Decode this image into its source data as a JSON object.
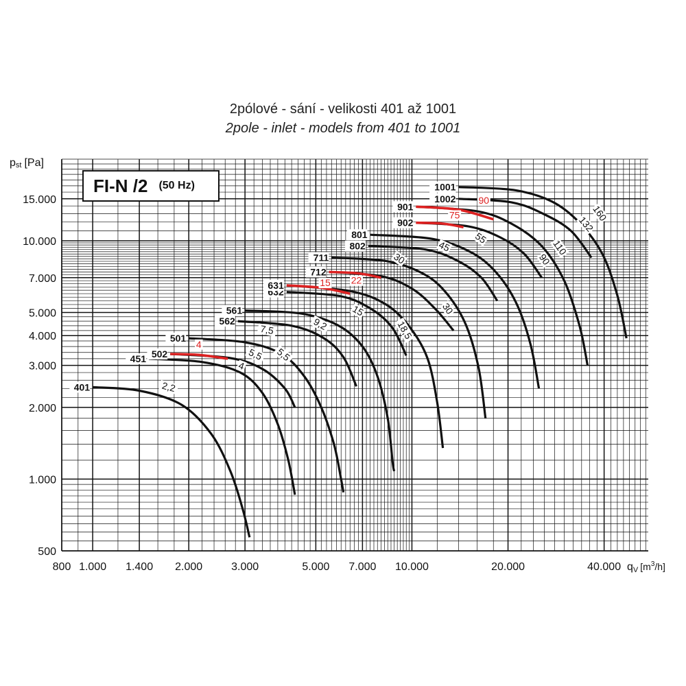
{
  "chart_title_cz": "2pólové - sání - velikosti 401 až 1001",
  "chart_title_en": "2pole - inlet - models from 401 to 1001",
  "badge": {
    "model": "FI-N /2",
    "freq": "(50 Hz)"
  },
  "chart_data": {
    "type": "line",
    "xscale": "log",
    "yscale": "log",
    "xlim": [
      800,
      55000
    ],
    "ylim": [
      500,
      22000
    ],
    "grid": true,
    "xlabel": {
      "main": "q",
      "sub": "V",
      "unit_pre": "[m",
      "unit_sup": "3",
      "unit_post": "/h]"
    },
    "ylabel": {
      "main": "p",
      "sub": "st",
      "unit": "[Pa]"
    },
    "xticks": [
      {
        "v": 800,
        "label": "800"
      },
      {
        "v": 1000,
        "label": "1.000"
      },
      {
        "v": 1400,
        "label": "1.400"
      },
      {
        "v": 2000,
        "label": "2.000"
      },
      {
        "v": 3000,
        "label": "3.000"
      },
      {
        "v": 5000,
        "label": "5.000"
      },
      {
        "v": 7000,
        "label": "7.000"
      },
      {
        "v": 10000,
        "label": "10.000"
      },
      {
        "v": 20000,
        "label": "20.000"
      },
      {
        "v": 40000,
        "label": "40.000"
      }
    ],
    "yticks": [
      {
        "v": 500,
        "label": "500"
      },
      {
        "v": 1000,
        "label": "1.000"
      },
      {
        "v": 2000,
        "label": "2.000"
      },
      {
        "v": 3000,
        "label": "3.000"
      },
      {
        "v": 4000,
        "label": "4.000"
      },
      {
        "v": 5000,
        "label": "5.000"
      },
      {
        "v": 7000,
        "label": "7.000"
      },
      {
        "v": 10000,
        "label": "10.000"
      },
      {
        "v": 15000,
        "label": "15.000"
      }
    ],
    "series": [
      {
        "name": "401",
        "color": "#111111",
        "points": [
          [
            1000,
            2430
          ],
          [
            1400,
            2350
          ],
          [
            1900,
            2050
          ],
          [
            2350,
            1550
          ],
          [
            2700,
            1080
          ],
          [
            2950,
            750
          ],
          [
            3100,
            570
          ]
        ]
      },
      {
        "name": "451",
        "color": "#111111",
        "points": [
          [
            1500,
            3200
          ],
          [
            2200,
            3100
          ],
          [
            2900,
            2800
          ],
          [
            3400,
            2300
          ],
          [
            3800,
            1700
          ],
          [
            4100,
            1200
          ],
          [
            4300,
            860
          ]
        ]
      },
      {
        "name": "502",
        "color": "#111111",
        "points": [
          [
            1750,
            3350
          ],
          [
            2700,
            3220
          ],
          [
            3400,
            2900
          ],
          [
            4000,
            2400
          ],
          [
            4300,
            2000
          ]
        ]
      },
      {
        "name": "501",
        "color": "#111111",
        "points": [
          [
            2000,
            3900
          ],
          [
            3000,
            3750
          ],
          [
            3900,
            3350
          ],
          [
            4600,
            2700
          ],
          [
            5200,
            2000
          ],
          [
            5700,
            1400
          ],
          [
            6000,
            1000
          ],
          [
            6100,
            880
          ]
        ]
      },
      {
        "name": "562",
        "color": "#111111",
        "points": [
          [
            2850,
            4600
          ],
          [
            4200,
            4400
          ],
          [
            5300,
            3900
          ],
          [
            6100,
            3250
          ],
          [
            6700,
            2450
          ]
        ]
      },
      {
        "name": "561",
        "color": "#111111",
        "points": [
          [
            3000,
            5100
          ],
          [
            4500,
            4950
          ],
          [
            5900,
            4400
          ],
          [
            7000,
            3600
          ],
          [
            7800,
            2700
          ],
          [
            8400,
            1800
          ],
          [
            8700,
            1180
          ],
          [
            8800,
            1080
          ]
        ]
      },
      {
        "name": "632",
        "color": "#111111",
        "points": [
          [
            4050,
            6100
          ],
          [
            6000,
            5850
          ],
          [
            7500,
            5150
          ],
          [
            8700,
            4300
          ],
          [
            9600,
            3300
          ]
        ]
      },
      {
        "name": "631",
        "color": "#111111",
        "points": [
          [
            4050,
            6500
          ],
          [
            6400,
            6150
          ],
          [
            8300,
            5400
          ],
          [
            9900,
            4300
          ],
          [
            11200,
            3200
          ],
          [
            12000,
            2100
          ],
          [
            12500,
            1350
          ]
        ]
      },
      {
        "name": "712",
        "color": "#111111",
        "points": [
          [
            5500,
            7400
          ],
          [
            8000,
            7100
          ],
          [
            10000,
            6300
          ],
          [
            11800,
            5200
          ],
          [
            13500,
            4200
          ]
        ]
      },
      {
        "name": "711",
        "color": "#111111",
        "points": [
          [
            5600,
            8500
          ],
          [
            8400,
            8200
          ],
          [
            11000,
            7200
          ],
          [
            13000,
            5900
          ],
          [
            14800,
            4400
          ],
          [
            16200,
            2900
          ],
          [
            17000,
            1800
          ]
        ]
      },
      {
        "name": "802",
        "color": "#111111",
        "points": [
          [
            7300,
            9500
          ],
          [
            11000,
            9200
          ],
          [
            14000,
            8200
          ],
          [
            16500,
            7000
          ],
          [
            18500,
            5600
          ]
        ]
      },
      {
        "name": "801",
        "color": "#111111",
        "points": [
          [
            7400,
            10600
          ],
          [
            11500,
            10200
          ],
          [
            15200,
            9000
          ],
          [
            18300,
            7400
          ],
          [
            21200,
            5500
          ],
          [
            23500,
            3700
          ],
          [
            25000,
            2400
          ]
        ]
      },
      {
        "name": "902",
        "color": "#111111",
        "points": [
          [
            10300,
            11900
          ],
          [
            15000,
            11500
          ],
          [
            19000,
            10300
          ],
          [
            22500,
            8800
          ],
          [
            25500,
            7000
          ]
        ]
      },
      {
        "name": "901",
        "color": "#111111",
        "points": [
          [
            10300,
            13900
          ],
          [
            16000,
            13300
          ],
          [
            20500,
            11800
          ],
          [
            25500,
            9500
          ],
          [
            30000,
            6800
          ],
          [
            33500,
            4400
          ],
          [
            35500,
            3000
          ]
        ]
      },
      {
        "name": "1002",
        "color": "#111111",
        "points": [
          [
            14000,
            15000
          ],
          [
            20500,
            14500
          ],
          [
            26000,
            12900
          ],
          [
            31500,
            11000
          ],
          [
            36500,
            8500
          ]
        ]
      },
      {
        "name": "1001",
        "color": "#111111",
        "points": [
          [
            14000,
            16800
          ],
          [
            21000,
            16300
          ],
          [
            27500,
            14600
          ],
          [
            33500,
            11900
          ],
          [
            39500,
            8800
          ],
          [
            44000,
            5900
          ],
          [
            47000,
            3900
          ]
        ]
      },
      {
        "name": "502 (red)",
        "color": "#dd2222",
        "points": [
          [
            1750,
            3350
          ],
          [
            2150,
            3320
          ],
          [
            2650,
            3200
          ]
        ]
      },
      {
        "name": "631 (red)",
        "color": "#dd2222",
        "points": [
          [
            4050,
            6500
          ],
          [
            5200,
            6350
          ],
          [
            6400,
            6000
          ]
        ]
      },
      {
        "name": "712 (red)",
        "color": "#dd2222",
        "points": [
          [
            5500,
            7400
          ],
          [
            6800,
            7300
          ],
          [
            8000,
            7000
          ]
        ]
      },
      {
        "name": "902 (red)",
        "color": "#dd2222",
        "points": [
          [
            10300,
            11900
          ],
          [
            12500,
            11800
          ],
          [
            14500,
            11400
          ]
        ]
      },
      {
        "name": "901 (red)",
        "color": "#dd2222",
        "points": [
          [
            10300,
            13900
          ],
          [
            14000,
            13500
          ],
          [
            18000,
            12300
          ]
        ]
      }
    ],
    "model_labels": [
      {
        "text": "401",
        "x": 1000,
        "y": 2430
      },
      {
        "text": "451",
        "x": 1500,
        "y": 3200
      },
      {
        "text": "502",
        "x": 1750,
        "y": 3350
      },
      {
        "text": "501",
        "x": 2000,
        "y": 3900
      },
      {
        "text": "562",
        "x": 2850,
        "y": 4600
      },
      {
        "text": "561",
        "x": 3000,
        "y": 5100
      },
      {
        "text": "632",
        "x": 4050,
        "y": 6100
      },
      {
        "text": "631",
        "x": 4050,
        "y": 6500
      },
      {
        "text": "712",
        "x": 5500,
        "y": 7400
      },
      {
        "text": "711",
        "x": 5600,
        "y": 8500
      },
      {
        "text": "802",
        "x": 7300,
        "y": 9500
      },
      {
        "text": "801",
        "x": 7400,
        "y": 10600
      },
      {
        "text": "902",
        "x": 10300,
        "y": 11900
      },
      {
        "text": "901",
        "x": 10300,
        "y": 13900
      },
      {
        "text": "1002",
        "x": 14000,
        "y": 15000
      },
      {
        "text": "1001",
        "x": 14000,
        "y": 16800
      }
    ],
    "annotations": [
      {
        "text": "2,2",
        "x": 1720,
        "y": 2360,
        "rot": 15,
        "color": "#111111"
      },
      {
        "text": "4",
        "x": 2150,
        "y": 3560,
        "rot": 0,
        "color": "#dd2222"
      },
      {
        "text": "4",
        "x": 2900,
        "y": 2900,
        "rot": 20,
        "color": "#111111"
      },
      {
        "text": "5,5",
        "x": 3200,
        "y": 3240,
        "rot": 25,
        "color": "#111111"
      },
      {
        "text": "5,5",
        "x": 3900,
        "y": 3250,
        "rot": 40,
        "color": "#111111"
      },
      {
        "text": "7,5",
        "x": 3500,
        "y": 4100,
        "rot": 10,
        "color": "#111111"
      },
      {
        "text": "9,2",
        "x": 5100,
        "y": 4350,
        "rot": 30,
        "color": "#111111"
      },
      {
        "text": "15",
        "x": 5350,
        "y": 6450,
        "rot": 0,
        "color": "#dd2222"
      },
      {
        "text": "22",
        "x": 6700,
        "y": 6600,
        "rot": 0,
        "color": "#dd2222"
      },
      {
        "text": "15",
        "x": 6700,
        "y": 4950,
        "rot": 30,
        "color": "#111111"
      },
      {
        "text": "18,5",
        "x": 9300,
        "y": 4150,
        "rot": 60,
        "color": "#111111"
      },
      {
        "text": "30",
        "x": 9000,
        "y": 8200,
        "rot": 35,
        "color": "#111111"
      },
      {
        "text": "30",
        "x": 12700,
        "y": 5100,
        "rot": 55,
        "color": "#111111"
      },
      {
        "text": "45",
        "x": 12500,
        "y": 9200,
        "rot": 25,
        "color": "#111111"
      },
      {
        "text": "55",
        "x": 16200,
        "y": 10000,
        "rot": 35,
        "color": "#111111"
      },
      {
        "text": "75",
        "x": 13600,
        "y": 12400,
        "rot": 0,
        "color": "#dd2222"
      },
      {
        "text": "90",
        "x": 16800,
        "y": 14300,
        "rot": 0,
        "color": "#dd2222"
      },
      {
        "text": "90",
        "x": 25500,
        "y": 8200,
        "rot": 55,
        "color": "#111111"
      },
      {
        "text": "110",
        "x": 28500,
        "y": 9200,
        "rot": 55,
        "color": "#111111"
      },
      {
        "text": "132",
        "x": 34500,
        "y": 11500,
        "rot": 50,
        "color": "#111111"
      },
      {
        "text": "160",
        "x": 38000,
        "y": 12800,
        "rot": 55,
        "color": "#111111"
      }
    ]
  }
}
